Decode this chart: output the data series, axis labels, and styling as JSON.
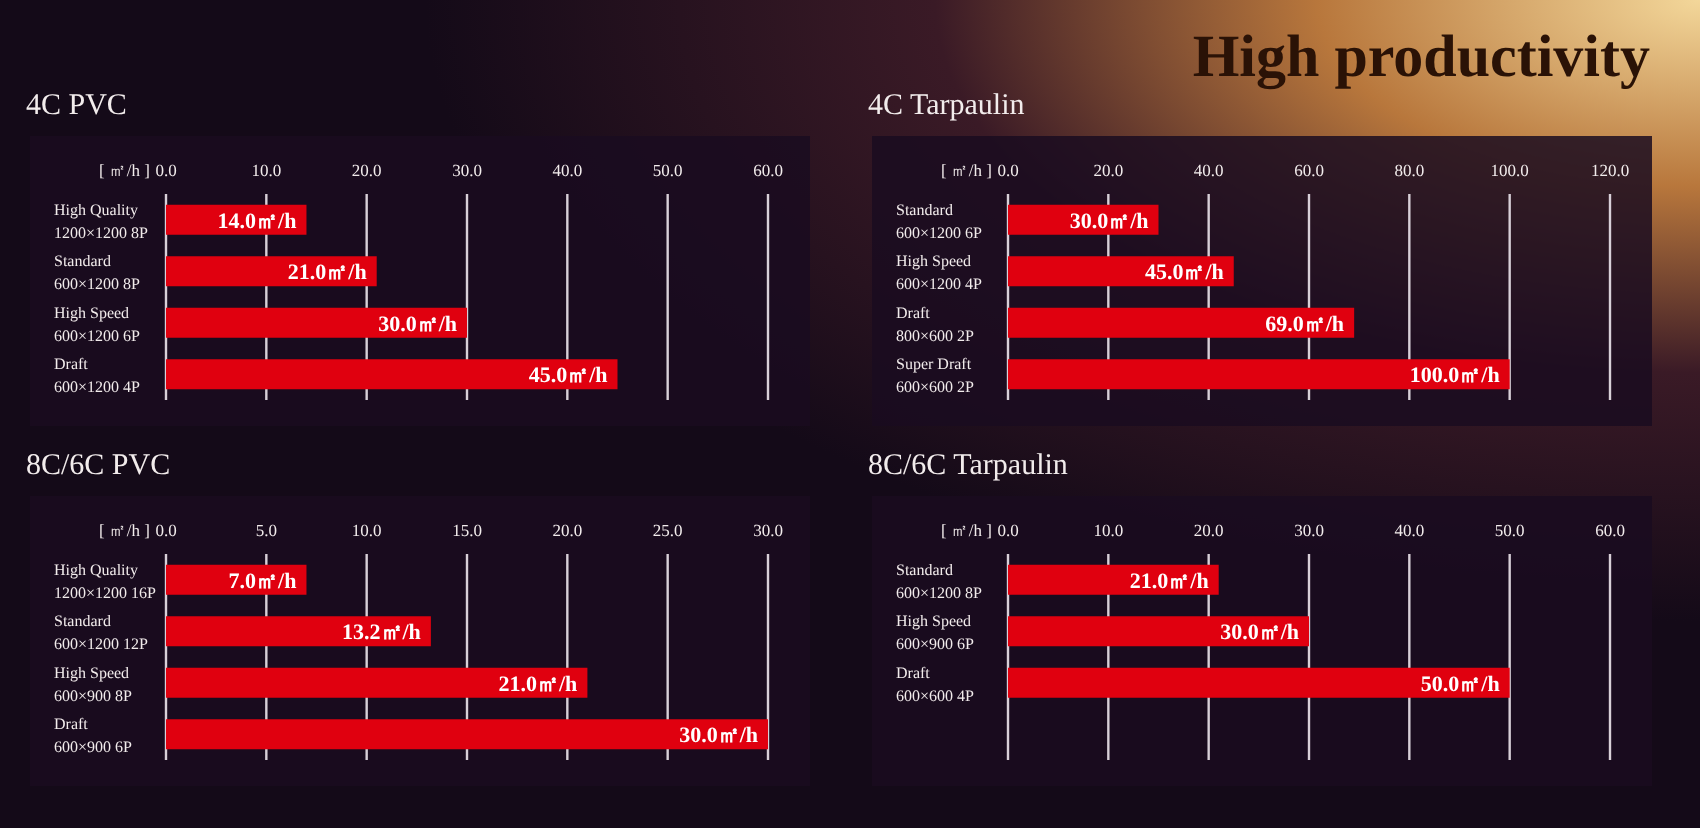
{
  "chart_data": [
    {
      "type": "bar",
      "orientation": "horizontal",
      "title": "4C PVC",
      "annotations": [
        "High productivity"
      ],
      "xlabel": "[ ㎡/h ]",
      "categories": [
        "High Quality\n1200×1200 8P",
        "Standard\n600×1200 8P",
        "High Speed\n600×1200 6P",
        "Draft\n600×1200 4P"
      ],
      "values": [
        14.0,
        21.0,
        30.0,
        45.0
      ],
      "value_labels": [
        "14.0㎡/h",
        "21.0㎡/h",
        "30.0㎡/h",
        "45.0㎡/h"
      ],
      "color": "#e0000f",
      "xlim": [
        0,
        60
      ],
      "xticks": [
        {
          "value": 0,
          "label": "0.0"
        },
        {
          "value": 10,
          "label": "10.0"
        },
        {
          "value": 20,
          "label": "20.0"
        },
        {
          "value": 30,
          "label": "30.0"
        },
        {
          "value": 40,
          "label": "40.0"
        },
        {
          "value": 50,
          "label": "50.0"
        },
        {
          "value": 60,
          "label": "60.0"
        }
      ],
      "grid": "x"
    },
    {
      "type": "bar",
      "orientation": "horizontal",
      "title": "4C Tarpaulin",
      "xlabel": "[ ㎡/h ]",
      "categories": [
        "Standard\n600×1200 6P",
        "High Speed\n600×1200 4P",
        "Draft\n800×600 2P",
        "Super Draft\n600×600 2P"
      ],
      "values": [
        30.0,
        45.0,
        69.0,
        100.0
      ],
      "value_labels": [
        "30.0㎡/h",
        "45.0㎡/h",
        "69.0㎡/h",
        "100.0㎡/h"
      ],
      "color": "#e0000f",
      "xlim": [
        0,
        120
      ],
      "xticks": [
        {
          "value": 0,
          "label": "0.0"
        },
        {
          "value": 20,
          "label": "20.0"
        },
        {
          "value": 40,
          "label": "40.0"
        },
        {
          "value": 60,
          "label": "60.0"
        },
        {
          "value": 80,
          "label": "80.0"
        },
        {
          "value": 100,
          "label": "100.0"
        },
        {
          "value": 120,
          "label": "120.0"
        }
      ],
      "grid": "x"
    },
    {
      "type": "bar",
      "orientation": "horizontal",
      "title": "8C/6C PVC",
      "xlabel": "[ ㎡/h ]",
      "categories": [
        "High Quality\n1200×1200 16P",
        "Standard\n600×1200 12P",
        "High Speed\n600×900 8P",
        "Draft\n600×900 6P"
      ],
      "values": [
        7.0,
        13.2,
        21.0,
        30.0
      ],
      "value_labels": [
        "7.0㎡/h",
        "13.2㎡/h",
        "21.0㎡/h",
        "30.0㎡/h"
      ],
      "color": "#e0000f",
      "xlim": [
        0,
        30
      ],
      "xticks": [
        {
          "value": 0,
          "label": "0.0"
        },
        {
          "value": 5,
          "label": "5.0"
        },
        {
          "value": 10,
          "label": "10.0"
        },
        {
          "value": 15,
          "label": "15.0"
        },
        {
          "value": 20,
          "label": "20.0"
        },
        {
          "value": 25,
          "label": "25.0"
        },
        {
          "value": 30,
          "label": "30.0"
        }
      ],
      "grid": "x"
    },
    {
      "type": "bar",
      "orientation": "horizontal",
      "title": "8C/6C Tarpaulin",
      "xlabel": "[ ㎡/h ]",
      "categories": [
        "Standard\n600×1200 8P",
        "High Speed\n600×900 6P",
        "Draft\n600×600 4P"
      ],
      "values": [
        21.0,
        30.0,
        50.0
      ],
      "value_labels": [
        "21.0㎡/h",
        "30.0㎡/h",
        "50.0㎡/h"
      ],
      "color": "#e0000f",
      "xlim": [
        0,
        60
      ],
      "xticks": [
        {
          "value": 0,
          "label": "0.0"
        },
        {
          "value": 10,
          "label": "10.0"
        },
        {
          "value": 20,
          "label": "20.0"
        },
        {
          "value": 30,
          "label": "30.0"
        },
        {
          "value": 40,
          "label": "40.0"
        },
        {
          "value": 50,
          "label": "50.0"
        },
        {
          "value": 60,
          "label": "60.0"
        }
      ],
      "grid": "x"
    }
  ]
}
